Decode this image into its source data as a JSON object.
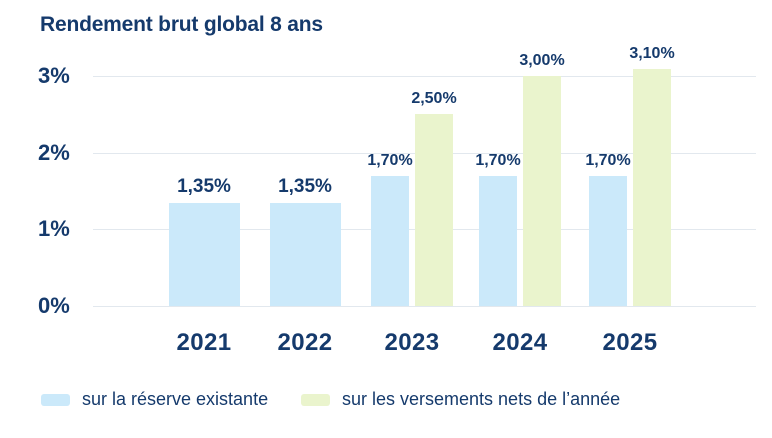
{
  "header": {
    "title": "Rendement brut global 8 ans"
  },
  "colors": {
    "navy": "#153a6c",
    "blue": "#cbe9fa",
    "green": "#eaf4cd",
    "gridline": "#e2e8ee",
    "background": "#ffffff"
  },
  "chart_data": {
    "type": "bar",
    "title": "Rendement brut global 8 ans",
    "categories": [
      "2021",
      "2022",
      "2023",
      "2024",
      "2025"
    ],
    "series": [
      {
        "name": "sur la réserve existante",
        "color": "#cbe9fa",
        "values": [
          1.35,
          1.35,
          1.7,
          1.7,
          1.7
        ],
        "labels": [
          "1,35%",
          "1,35%",
          "1,70%",
          "1,70%",
          "1,70%"
        ]
      },
      {
        "name": "sur les versements nets de l’année",
        "color": "#eaf4cd",
        "values": [
          null,
          null,
          2.5,
          3.0,
          3.1
        ],
        "labels": [
          null,
          null,
          "2,50%",
          "3,00%",
          "3,10%"
        ]
      }
    ],
    "ylim": [
      0,
      3.5
    ],
    "ytick_values": [
      0,
      1,
      2,
      3
    ],
    "ytick_labels": [
      "0%",
      "1%",
      "2%",
      "3%"
    ],
    "grid": true,
    "grid_orientation": "horizontal",
    "legend_position": "bottom"
  },
  "legend": {
    "items": [
      {
        "label": "sur la réserve existante",
        "color": "#cbe9fa"
      },
      {
        "label": "sur les versements nets de l’année",
        "color": "#eaf4cd"
      }
    ]
  }
}
